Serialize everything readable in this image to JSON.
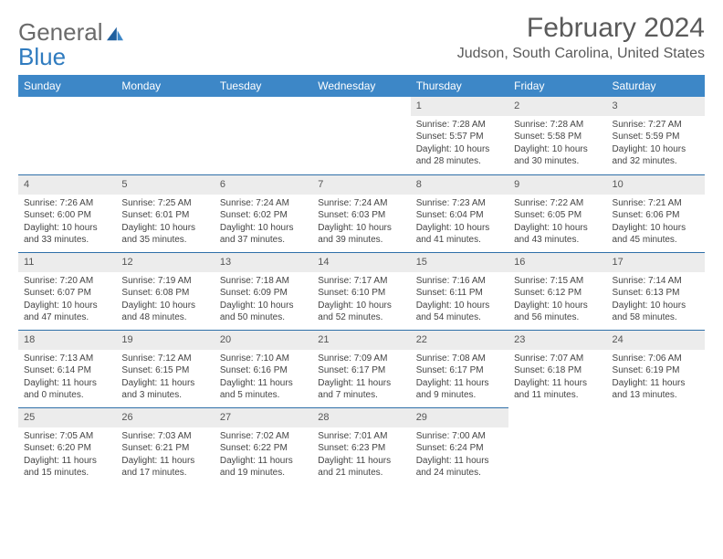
{
  "logo": {
    "word1": "General",
    "word2": "Blue"
  },
  "header": {
    "month_title": "February 2024",
    "location": "Judson, South Carolina, United States"
  },
  "day_names": [
    "Sunday",
    "Monday",
    "Tuesday",
    "Wednesday",
    "Thursday",
    "Friday",
    "Saturday"
  ],
  "colors": {
    "header_bg": "#3d87c7",
    "header_text": "#ffffff",
    "daynum_bg": "#ececec",
    "divider": "#2f6fa8",
    "logo_gray": "#6a6a6a",
    "logo_blue": "#2f7bbf",
    "text": "#444444"
  },
  "weeks": [
    [
      {
        "n": "",
        "sr": "",
        "ss": "",
        "dl": ""
      },
      {
        "n": "",
        "sr": "",
        "ss": "",
        "dl": ""
      },
      {
        "n": "",
        "sr": "",
        "ss": "",
        "dl": ""
      },
      {
        "n": "",
        "sr": "",
        "ss": "",
        "dl": ""
      },
      {
        "n": "1",
        "sr": "Sunrise: 7:28 AM",
        "ss": "Sunset: 5:57 PM",
        "dl": "Daylight: 10 hours and 28 minutes."
      },
      {
        "n": "2",
        "sr": "Sunrise: 7:28 AM",
        "ss": "Sunset: 5:58 PM",
        "dl": "Daylight: 10 hours and 30 minutes."
      },
      {
        "n": "3",
        "sr": "Sunrise: 7:27 AM",
        "ss": "Sunset: 5:59 PM",
        "dl": "Daylight: 10 hours and 32 minutes."
      }
    ],
    [
      {
        "n": "4",
        "sr": "Sunrise: 7:26 AM",
        "ss": "Sunset: 6:00 PM",
        "dl": "Daylight: 10 hours and 33 minutes."
      },
      {
        "n": "5",
        "sr": "Sunrise: 7:25 AM",
        "ss": "Sunset: 6:01 PM",
        "dl": "Daylight: 10 hours and 35 minutes."
      },
      {
        "n": "6",
        "sr": "Sunrise: 7:24 AM",
        "ss": "Sunset: 6:02 PM",
        "dl": "Daylight: 10 hours and 37 minutes."
      },
      {
        "n": "7",
        "sr": "Sunrise: 7:24 AM",
        "ss": "Sunset: 6:03 PM",
        "dl": "Daylight: 10 hours and 39 minutes."
      },
      {
        "n": "8",
        "sr": "Sunrise: 7:23 AM",
        "ss": "Sunset: 6:04 PM",
        "dl": "Daylight: 10 hours and 41 minutes."
      },
      {
        "n": "9",
        "sr": "Sunrise: 7:22 AM",
        "ss": "Sunset: 6:05 PM",
        "dl": "Daylight: 10 hours and 43 minutes."
      },
      {
        "n": "10",
        "sr": "Sunrise: 7:21 AM",
        "ss": "Sunset: 6:06 PM",
        "dl": "Daylight: 10 hours and 45 minutes."
      }
    ],
    [
      {
        "n": "11",
        "sr": "Sunrise: 7:20 AM",
        "ss": "Sunset: 6:07 PM",
        "dl": "Daylight: 10 hours and 47 minutes."
      },
      {
        "n": "12",
        "sr": "Sunrise: 7:19 AM",
        "ss": "Sunset: 6:08 PM",
        "dl": "Daylight: 10 hours and 48 minutes."
      },
      {
        "n": "13",
        "sr": "Sunrise: 7:18 AM",
        "ss": "Sunset: 6:09 PM",
        "dl": "Daylight: 10 hours and 50 minutes."
      },
      {
        "n": "14",
        "sr": "Sunrise: 7:17 AM",
        "ss": "Sunset: 6:10 PM",
        "dl": "Daylight: 10 hours and 52 minutes."
      },
      {
        "n": "15",
        "sr": "Sunrise: 7:16 AM",
        "ss": "Sunset: 6:11 PM",
        "dl": "Daylight: 10 hours and 54 minutes."
      },
      {
        "n": "16",
        "sr": "Sunrise: 7:15 AM",
        "ss": "Sunset: 6:12 PM",
        "dl": "Daylight: 10 hours and 56 minutes."
      },
      {
        "n": "17",
        "sr": "Sunrise: 7:14 AM",
        "ss": "Sunset: 6:13 PM",
        "dl": "Daylight: 10 hours and 58 minutes."
      }
    ],
    [
      {
        "n": "18",
        "sr": "Sunrise: 7:13 AM",
        "ss": "Sunset: 6:14 PM",
        "dl": "Daylight: 11 hours and 0 minutes."
      },
      {
        "n": "19",
        "sr": "Sunrise: 7:12 AM",
        "ss": "Sunset: 6:15 PM",
        "dl": "Daylight: 11 hours and 3 minutes."
      },
      {
        "n": "20",
        "sr": "Sunrise: 7:10 AM",
        "ss": "Sunset: 6:16 PM",
        "dl": "Daylight: 11 hours and 5 minutes."
      },
      {
        "n": "21",
        "sr": "Sunrise: 7:09 AM",
        "ss": "Sunset: 6:17 PM",
        "dl": "Daylight: 11 hours and 7 minutes."
      },
      {
        "n": "22",
        "sr": "Sunrise: 7:08 AM",
        "ss": "Sunset: 6:17 PM",
        "dl": "Daylight: 11 hours and 9 minutes."
      },
      {
        "n": "23",
        "sr": "Sunrise: 7:07 AM",
        "ss": "Sunset: 6:18 PM",
        "dl": "Daylight: 11 hours and 11 minutes."
      },
      {
        "n": "24",
        "sr": "Sunrise: 7:06 AM",
        "ss": "Sunset: 6:19 PM",
        "dl": "Daylight: 11 hours and 13 minutes."
      }
    ],
    [
      {
        "n": "25",
        "sr": "Sunrise: 7:05 AM",
        "ss": "Sunset: 6:20 PM",
        "dl": "Daylight: 11 hours and 15 minutes."
      },
      {
        "n": "26",
        "sr": "Sunrise: 7:03 AM",
        "ss": "Sunset: 6:21 PM",
        "dl": "Daylight: 11 hours and 17 minutes."
      },
      {
        "n": "27",
        "sr": "Sunrise: 7:02 AM",
        "ss": "Sunset: 6:22 PM",
        "dl": "Daylight: 11 hours and 19 minutes."
      },
      {
        "n": "28",
        "sr": "Sunrise: 7:01 AM",
        "ss": "Sunset: 6:23 PM",
        "dl": "Daylight: 11 hours and 21 minutes."
      },
      {
        "n": "29",
        "sr": "Sunrise: 7:00 AM",
        "ss": "Sunset: 6:24 PM",
        "dl": "Daylight: 11 hours and 24 minutes."
      },
      {
        "n": "",
        "sr": "",
        "ss": "",
        "dl": ""
      },
      {
        "n": "",
        "sr": "",
        "ss": "",
        "dl": ""
      }
    ]
  ]
}
